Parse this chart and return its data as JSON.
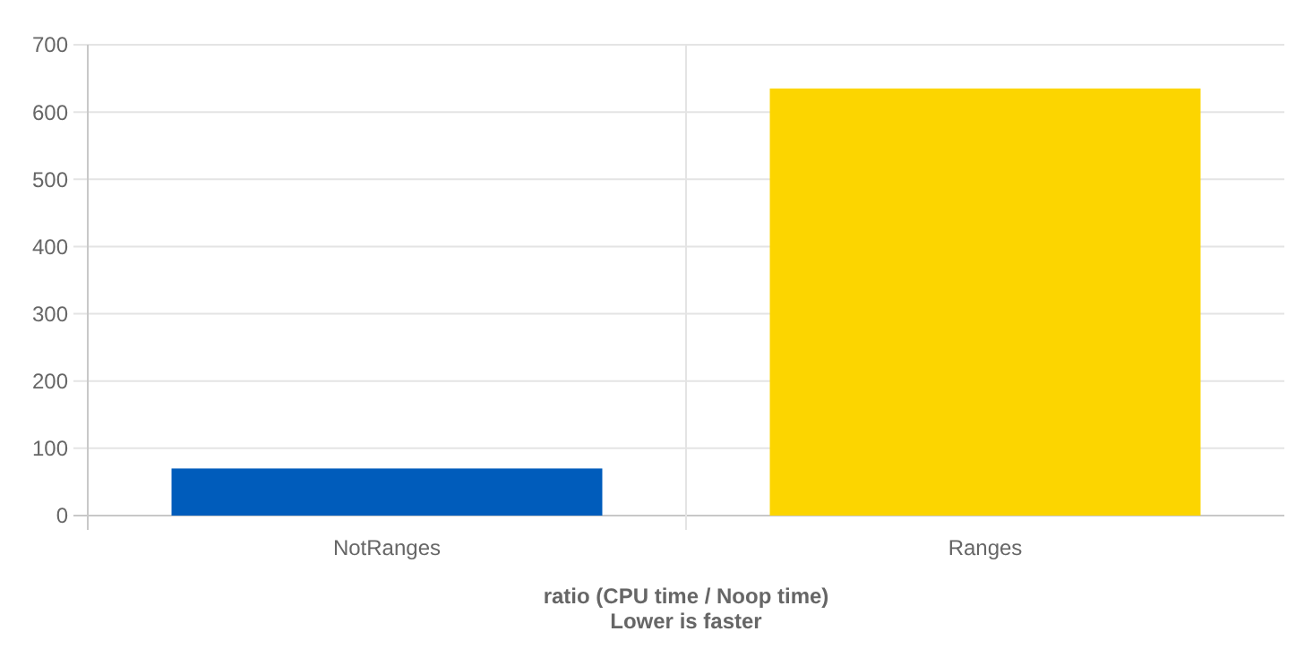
{
  "chart_data": {
    "type": "bar",
    "categories": [
      "NotRanges",
      "Ranges"
    ],
    "values": [
      70,
      635
    ],
    "colors": [
      "#005cbb",
      "#fcd500"
    ],
    "xlabel": "ratio (CPU time / Noop time)\nLower is faster",
    "ylim": [
      0,
      700
    ],
    "yticks": [
      0,
      100,
      200,
      300,
      400,
      500,
      600,
      700
    ],
    "grid": true
  }
}
